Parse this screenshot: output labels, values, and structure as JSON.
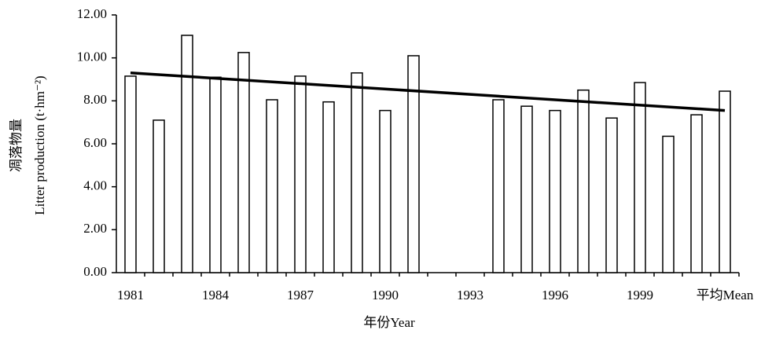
{
  "chart_data": {
    "type": "bar",
    "categories": [
      "1981",
      null,
      null,
      "1984",
      null,
      null,
      "1987",
      null,
      null,
      "1990",
      null,
      null,
      "1993",
      null,
      null,
      "1996",
      null,
      null,
      "1999",
      null,
      null,
      "平均Mean"
    ],
    "values": [
      9.15,
      7.1,
      11.05,
      9.1,
      10.25,
      8.05,
      9.15,
      7.95,
      9.3,
      7.55,
      10.1,
      null,
      null,
      8.05,
      7.75,
      7.55,
      8.5,
      7.2,
      8.85,
      6.35,
      7.35,
      8.45
    ],
    "trendline": [
      9.3,
      7.55
    ],
    "color": "#ffffff",
    "ylim": [
      0,
      12
    ],
    "yticks": [
      {
        "value": 0,
        "label": "0.00"
      },
      {
        "value": 2,
        "label": "2.00"
      },
      {
        "value": 4,
        "label": "4.00"
      },
      {
        "value": 6,
        "label": "6.00"
      },
      {
        "value": 8,
        "label": "8.00"
      },
      {
        "value": 10,
        "label": "10.00"
      },
      {
        "value": 12,
        "label": "12.00"
      }
    ],
    "ylabel": [
      "凋落物量",
      "Litter production (t·hm⁻²)"
    ],
    "xlabel": "年份Year"
  }
}
